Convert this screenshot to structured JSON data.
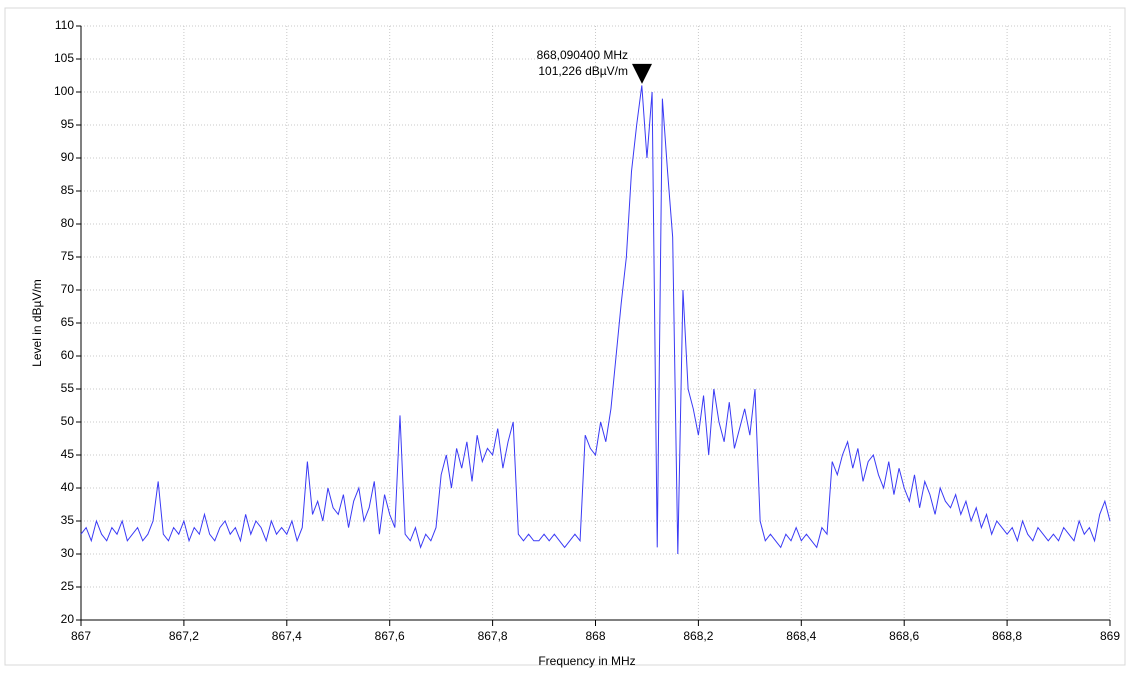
{
  "chart_data": {
    "type": "line",
    "xlabel": "Frequency in MHz",
    "ylabel": "Level in dBµV/m",
    "color": "#3a3af5",
    "grid": true,
    "xlim": [
      867,
      869
    ],
    "ylim": [
      20,
      110
    ],
    "xticks": [
      867,
      {
        "value": 867.2,
        "label": "867,2"
      },
      {
        "value": 867.4,
        "label": "867,4"
      },
      {
        "value": 867.6,
        "label": "867,6"
      },
      {
        "value": 867.8,
        "label": "867,8"
      },
      868,
      {
        "value": 868.2,
        "label": "868,2"
      },
      {
        "value": 868.4,
        "label": "868,4"
      },
      {
        "value": 868.6,
        "label": "868,6"
      },
      {
        "value": 868.8,
        "label": "868,8"
      },
      869
    ],
    "yticks": [
      20,
      25,
      30,
      35,
      40,
      45,
      50,
      55,
      60,
      65,
      70,
      75,
      80,
      85,
      90,
      95,
      100,
      105,
      110
    ],
    "marker": {
      "x": 868.0904,
      "y": 101.226,
      "labels": [
        "868,090400 MHz",
        "101,226 dBµV/m"
      ]
    },
    "x": [
      867.0,
      867.01,
      867.02,
      867.03,
      867.04,
      867.05,
      867.06,
      867.07,
      867.08,
      867.09,
      867.1,
      867.11,
      867.12,
      867.13,
      867.14,
      867.15,
      867.16,
      867.17,
      867.18,
      867.19,
      867.2,
      867.21,
      867.22,
      867.23,
      867.24,
      867.25,
      867.26,
      867.27,
      867.28,
      867.29,
      867.3,
      867.31,
      867.32,
      867.33,
      867.34,
      867.35,
      867.36,
      867.37,
      867.38,
      867.39,
      867.4,
      867.41,
      867.42,
      867.43,
      867.44,
      867.45,
      867.46,
      867.47,
      867.48,
      867.49,
      867.5,
      867.51,
      867.52,
      867.53,
      867.54,
      867.55,
      867.56,
      867.57,
      867.58,
      867.59,
      867.6,
      867.61,
      867.62,
      867.63,
      867.64,
      867.65,
      867.66,
      867.67,
      867.68,
      867.69,
      867.7,
      867.71,
      867.72,
      867.73,
      867.74,
      867.75,
      867.76,
      867.77,
      867.78,
      867.79,
      867.8,
      867.81,
      867.82,
      867.83,
      867.84,
      867.85,
      867.86,
      867.87,
      867.88,
      867.89,
      867.9,
      867.91,
      867.92,
      867.93,
      867.94,
      867.95,
      867.96,
      867.97,
      867.98,
      867.99,
      868.0,
      868.01,
      868.02,
      868.03,
      868.04,
      868.05,
      868.06,
      868.07,
      868.08,
      868.09,
      868.1,
      868.11,
      868.12,
      868.13,
      868.14,
      868.15,
      868.16,
      868.17,
      868.18,
      868.19,
      868.2,
      868.21,
      868.22,
      868.23,
      868.24,
      868.25,
      868.26,
      868.27,
      868.28,
      868.29,
      868.3,
      868.31,
      868.32,
      868.33,
      868.34,
      868.35,
      868.36,
      868.37,
      868.38,
      868.39,
      868.4,
      868.41,
      868.42,
      868.43,
      868.44,
      868.45,
      868.46,
      868.47,
      868.48,
      868.49,
      868.5,
      868.51,
      868.52,
      868.53,
      868.54,
      868.55,
      868.56,
      868.57,
      868.58,
      868.59,
      868.6,
      868.61,
      868.62,
      868.63,
      868.64,
      868.65,
      868.66,
      868.67,
      868.68,
      868.69,
      868.7,
      868.71,
      868.72,
      868.73,
      868.74,
      868.75,
      868.76,
      868.77,
      868.78,
      868.79,
      868.8,
      868.81,
      868.82,
      868.83,
      868.84,
      868.85,
      868.86,
      868.87,
      868.88,
      868.89,
      868.9,
      868.91,
      868.92,
      868.93,
      868.94,
      868.95,
      868.96,
      868.97,
      868.98,
      868.99,
      869.0
    ],
    "values": [
      33,
      34,
      32,
      35,
      33,
      32,
      34,
      33,
      35,
      32,
      33,
      34,
      32,
      33,
      35,
      41,
      33,
      32,
      34,
      33,
      35,
      32,
      34,
      33,
      36,
      33,
      32,
      34,
      35,
      33,
      34,
      32,
      36,
      33,
      35,
      34,
      32,
      35,
      33,
      34,
      33,
      35,
      32,
      34,
      44,
      36,
      38,
      35,
      40,
      37,
      36,
      39,
      34,
      38,
      40,
      35,
      37,
      41,
      33,
      39,
      36,
      34,
      51,
      33,
      32,
      34,
      31,
      33,
      32,
      34,
      42,
      45,
      40,
      46,
      43,
      47,
      41,
      48,
      44,
      46,
      45,
      49,
      43,
      47,
      50,
      33,
      32,
      33,
      32,
      32,
      33,
      32,
      33,
      32,
      31,
      32,
      33,
      32,
      48,
      46,
      45,
      50,
      47,
      52,
      60,
      68,
      75,
      88,
      95,
      101,
      90,
      100,
      31,
      99,
      88,
      78,
      30,
      70,
      55,
      52,
      48,
      54,
      45,
      55,
      50,
      47,
      53,
      46,
      49,
      52,
      48,
      55,
      35,
      32,
      33,
      32,
      31,
      33,
      32,
      34,
      32,
      33,
      32,
      31,
      34,
      33,
      44,
      42,
      45,
      47,
      43,
      46,
      41,
      44,
      45,
      42,
      40,
      44,
      39,
      43,
      40,
      38,
      42,
      37,
      41,
      39,
      36,
      40,
      38,
      37,
      39,
      36,
      38,
      35,
      37,
      34,
      36,
      33,
      35,
      34,
      33,
      34,
      32,
      35,
      33,
      32,
      34,
      33,
      32,
      33,
      32,
      34,
      33,
      32,
      35,
      33,
      34,
      32,
      36,
      38,
      35
    ]
  }
}
